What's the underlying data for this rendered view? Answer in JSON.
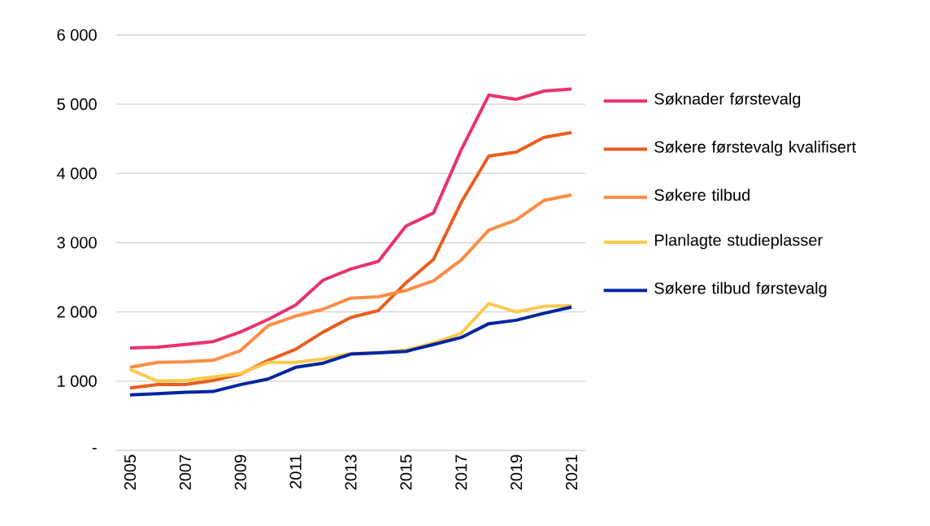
{
  "chart_data": {
    "type": "line",
    "x": [
      2005,
      2006,
      2007,
      2008,
      2009,
      2010,
      2011,
      2012,
      2013,
      2014,
      2015,
      2016,
      2017,
      2018,
      2019,
      2020,
      2021
    ],
    "xlim": [
      2004.5,
      2021.5
    ],
    "xticks": [
      2005,
      2007,
      2009,
      2011,
      2013,
      2015,
      2017,
      2019,
      2021
    ],
    "ylim": [
      0,
      6000
    ],
    "yticks": [
      {
        "value": 0,
        "label": "-"
      },
      {
        "value": 1000,
        "label": "1 000"
      },
      {
        "value": 2000,
        "label": "2 000"
      },
      {
        "value": 3000,
        "label": "3 000"
      },
      {
        "value": 4000,
        "label": "4 000"
      },
      {
        "value": 5000,
        "label": "5 000"
      },
      {
        "value": 6000,
        "label": "6 000"
      }
    ],
    "grid": "y",
    "legend": "right",
    "line_style": "solid",
    "series": [
      {
        "name": "Søknader førstevalg",
        "color": "#e8336f",
        "values": [
          1480,
          1490,
          1530,
          1570,
          1710,
          1890,
          2100,
          2460,
          2620,
          2730,
          3240,
          3430,
          4340,
          5130,
          5070,
          5190,
          5220
        ]
      },
      {
        "name": "Søkere førstevalg kvalifisert",
        "color": "#e95e1f",
        "values": [
          900,
          950,
          950,
          1010,
          1100,
          1300,
          1460,
          1710,
          1920,
          2020,
          2420,
          2760,
          3580,
          4250,
          4310,
          4520,
          4590
        ]
      },
      {
        "name": "Søkere tilbud",
        "color": "#fd8c44",
        "values": [
          1200,
          1270,
          1280,
          1300,
          1440,
          1800,
          1940,
          2040,
          2200,
          2220,
          2310,
          2450,
          2750,
          3180,
          3330,
          3610,
          3690
        ]
      },
      {
        "name": "Planlagte studieplasser",
        "color": "#fec84a",
        "values": [
          1170,
          1000,
          1010,
          1060,
          1110,
          1270,
          1270,
          1320,
          1400,
          1410,
          1450,
          1550,
          1690,
          2120,
          2000,
          2080,
          2090
        ]
      },
      {
        "name": "Søkere tilbud førstevalg",
        "color": "#0025a0",
        "values": [
          800,
          820,
          840,
          850,
          950,
          1030,
          1200,
          1260,
          1390,
          1410,
          1430,
          1530,
          1630,
          1830,
          1880,
          1980,
          2070
        ]
      }
    ]
  }
}
